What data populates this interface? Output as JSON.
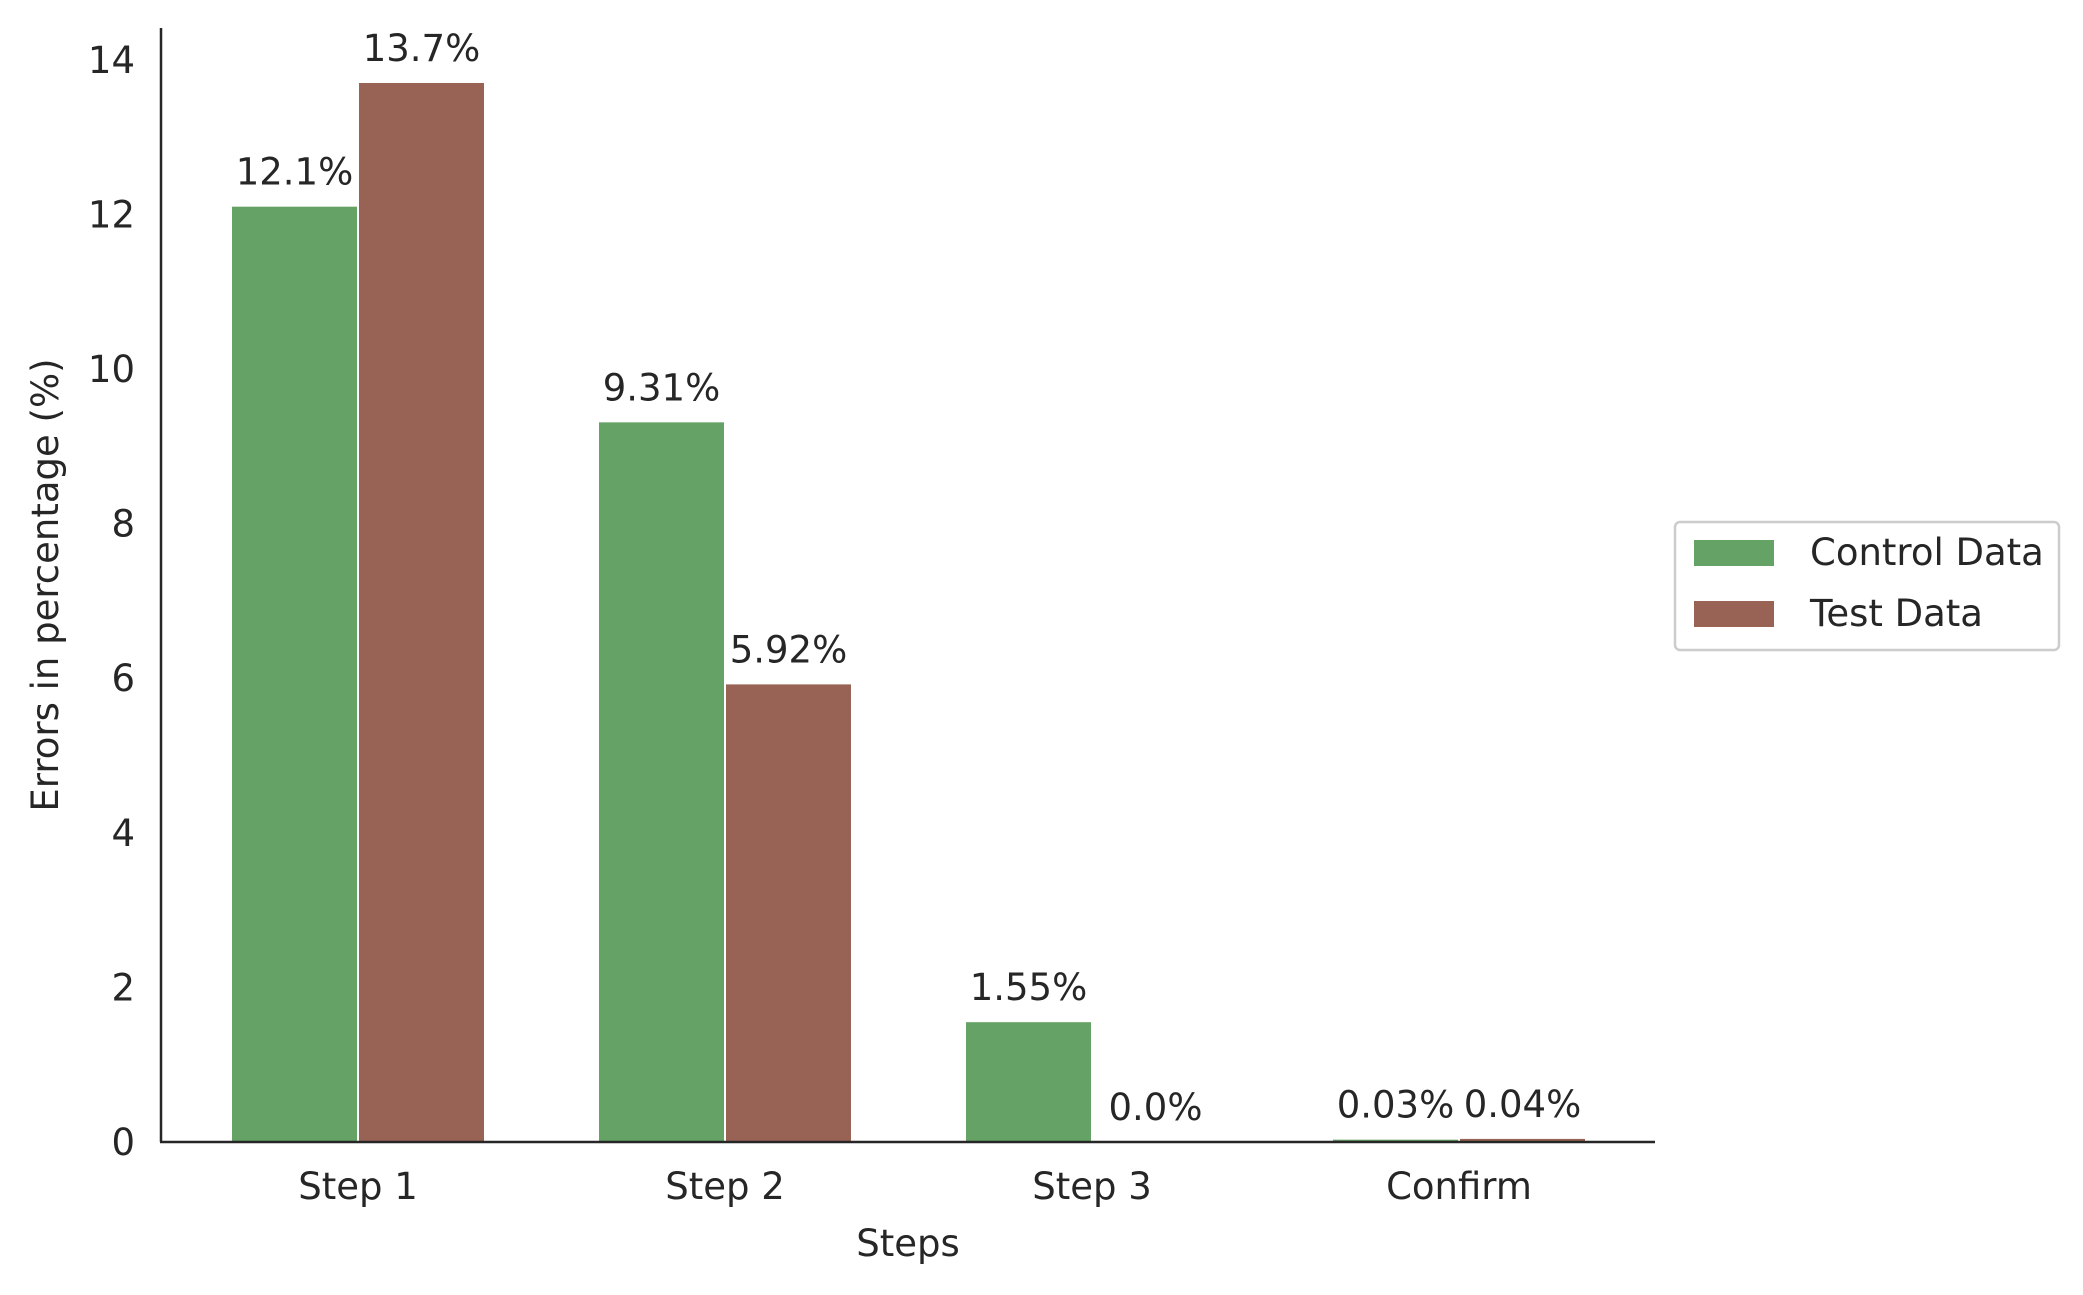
{
  "chart_data": {
    "type": "bar",
    "xlabel": "Steps",
    "ylabel": "Errors in percentage (%)",
    "categories": [
      "Step 1",
      "Step 2",
      "Step 3",
      "Confirm"
    ],
    "series": [
      {
        "name": "Control Data",
        "color": "#65a265",
        "values": [
          12.1,
          9.31,
          1.55,
          0.03
        ],
        "labels": [
          "12.1%",
          "9.31%",
          "1.55%",
          "0.03%"
        ]
      },
      {
        "name": "Test Data",
        "color": "#986354",
        "values": [
          13.7,
          5.92,
          0.0,
          0.04
        ],
        "labels": [
          "13.7%",
          "5.92%",
          "0.0%",
          "0.04%"
        ]
      }
    ],
    "ylim": [
      0,
      14.4
    ],
    "yticks": [
      0,
      2,
      4,
      6,
      8,
      10,
      12,
      14
    ],
    "grid": false,
    "legend_position": "center-right"
  }
}
